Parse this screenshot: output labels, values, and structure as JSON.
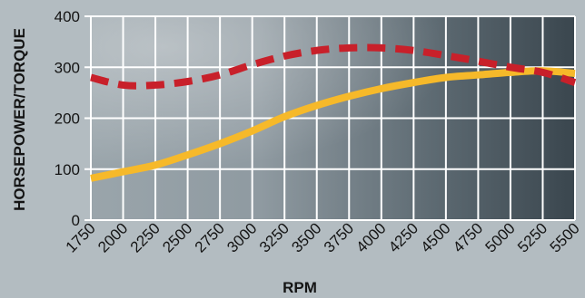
{
  "chart_data": {
    "type": "line",
    "title": "",
    "xlabel": "RPM",
    "ylabel": "HORSEPOWER/TORQUE",
    "x": [
      1750,
      2000,
      2250,
      2500,
      2750,
      3000,
      3250,
      3500,
      3750,
      4000,
      4250,
      4500,
      4750,
      5000,
      5250,
      5500
    ],
    "xlim": [
      1750,
      5500
    ],
    "ylim": [
      0,
      400
    ],
    "yticks": [
      0,
      100,
      200,
      300,
      400
    ],
    "grid": true,
    "legend": "none",
    "series": [
      {
        "style": "solid",
        "color": "#f6b92a",
        "values": [
          82,
          95,
          108,
          128,
          150,
          175,
          203,
          225,
          243,
          258,
          270,
          280,
          285,
          290,
          293,
          288
        ]
      },
      {
        "style": "dashed",
        "color": "#c8202a",
        "values": [
          280,
          265,
          265,
          272,
          285,
          305,
          322,
          333,
          338,
          338,
          333,
          323,
          312,
          300,
          290,
          270
        ]
      }
    ]
  }
}
